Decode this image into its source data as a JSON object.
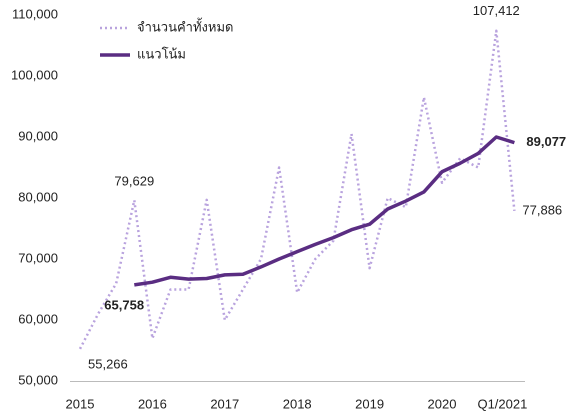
{
  "chart_data": {
    "type": "line",
    "categories": [
      "2015",
      null,
      null,
      null,
      "2016",
      null,
      null,
      null,
      "2017",
      null,
      null,
      null,
      "2018",
      null,
      null,
      null,
      "2019",
      null,
      null,
      null,
      "2020",
      null,
      null,
      null,
      "Q1/2021"
    ],
    "series": [
      {
        "name": "จำนวนคำทั้งหมด",
        "color": "#b9a3de",
        "style": "dotted",
        "values": [
          55266,
          61000,
          66000,
          79629,
          57000,
          65000,
          65000,
          79700,
          60000,
          65000,
          70000,
          85000,
          64500,
          70000,
          73000,
          90500,
          68500,
          80000,
          78500,
          96500,
          82500,
          86500,
          85000,
          107412,
          77886
        ],
        "value_labels": [
          "55,266",
          null,
          null,
          "79,629",
          null,
          null,
          null,
          null,
          null,
          null,
          null,
          null,
          null,
          null,
          null,
          null,
          null,
          null,
          null,
          null,
          null,
          null,
          null,
          "107,412",
          "77,886"
        ]
      },
      {
        "name": "แนวโน้ม",
        "color": "#5a2d82",
        "style": "solid",
        "values": [
          null,
          null,
          null,
          65758,
          66200,
          67000,
          66700,
          66800,
          67400,
          67500,
          68700,
          70000,
          71200,
          72400,
          73500,
          74800,
          75700,
          78200,
          79500,
          81000,
          84300,
          85700,
          87300,
          90000,
          89077
        ],
        "value_labels": [
          null,
          null,
          null,
          "65,758",
          null,
          null,
          null,
          null,
          null,
          null,
          null,
          null,
          null,
          null,
          null,
          null,
          null,
          null,
          null,
          null,
          null,
          null,
          null,
          null,
          "89,077"
        ]
      }
    ],
    "ylim": [
      50000,
      110000
    ],
    "yticks": [
      {
        "value": 50000,
        "label": "50,000"
      },
      {
        "value": 60000,
        "label": "60,000"
      },
      {
        "value": 70000,
        "label": "70,000"
      },
      {
        "value": 80000,
        "label": "80,000"
      },
      {
        "value": 90000,
        "label": "90,000"
      },
      {
        "value": 100000,
        "label": "100,000"
      },
      {
        "value": 110000,
        "label": "110,000"
      }
    ],
    "legend": "top-left",
    "grid": false
  }
}
